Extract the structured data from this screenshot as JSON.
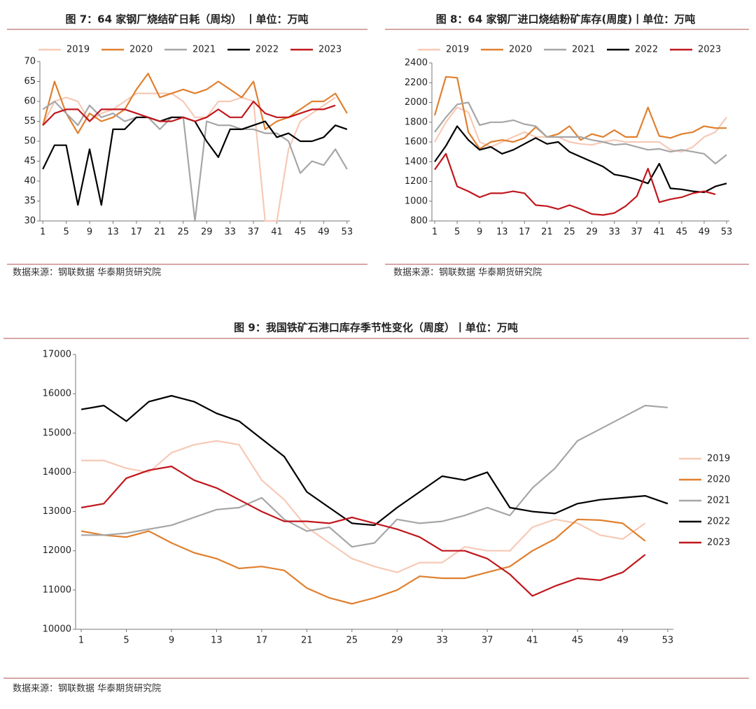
{
  "chart_data": [
    {
      "type": "line",
      "title": "图 7：64 家钢厂烧结矿日耗（周均）  丨单位：万吨",
      "source": "数据来源：钢联数据 华泰期货研究院",
      "legend": "top",
      "x": [
        1,
        3,
        5,
        7,
        9,
        11,
        13,
        15,
        17,
        19,
        21,
        23,
        25,
        27,
        29,
        31,
        33,
        35,
        37,
        39,
        41,
        43,
        45,
        47,
        49,
        51,
        53
      ],
      "xlim": [
        0.5,
        53.5
      ],
      "xticks": [
        1,
        5,
        9,
        13,
        17,
        21,
        25,
        29,
        33,
        37,
        41,
        45,
        49,
        53
      ],
      "ylim": [
        30,
        70
      ],
      "yticks": [
        30,
        35,
        40,
        45,
        50,
        55,
        60,
        65,
        70
      ],
      "series": [
        {
          "name": "2019",
          "color": "#f7c9b6",
          "values": [
            54,
            60,
            61,
            60,
            55,
            57,
            58,
            60,
            62,
            62,
            62,
            62,
            60,
            56,
            56,
            60,
            60,
            61,
            60,
            30,
            30,
            48,
            55,
            57,
            59,
            61,
            null
          ]
        },
        {
          "name": "2020",
          "color": "#e0802f",
          "values": [
            54,
            65,
            57,
            52,
            57,
            55,
            56,
            58,
            63,
            67,
            61,
            62,
            63,
            62,
            63,
            65,
            63,
            61,
            65,
            53,
            55,
            56,
            58,
            60,
            60,
            62,
            57
          ]
        },
        {
          "name": "2021",
          "color": "#a6a6a6",
          "values": [
            58,
            60,
            57,
            54,
            59,
            56,
            57,
            55,
            56,
            56,
            53,
            56,
            56,
            30,
            55,
            54,
            54,
            53,
            53,
            52,
            52,
            50,
            42,
            45,
            44,
            48,
            43
          ]
        },
        {
          "name": "2022",
          "color": "#000000",
          "values": [
            43,
            49,
            49,
            34,
            48,
            34,
            53,
            53,
            56,
            56,
            55,
            56,
            56,
            55,
            50,
            46,
            53,
            53,
            54,
            55,
            51,
            52,
            50,
            50,
            51,
            54,
            53
          ]
        },
        {
          "name": "2023",
          "color": "#c0171d",
          "values": [
            54,
            57,
            58,
            58,
            55,
            58,
            58,
            58,
            57,
            56,
            55,
            55,
            56,
            55,
            56,
            58,
            56,
            56,
            60,
            57,
            56,
            56,
            57,
            58,
            58,
            59,
            null
          ]
        }
      ]
    },
    {
      "type": "line",
      "title": "图 8：64 家钢厂进口烧结粉矿库存(周度)丨单位：万吨",
      "source": "数据来源：钢联数据 华泰期货研究院",
      "legend": "top",
      "x": [
        1,
        3,
        5,
        7,
        9,
        11,
        13,
        15,
        17,
        19,
        21,
        23,
        25,
        27,
        29,
        31,
        33,
        35,
        37,
        39,
        41,
        43,
        45,
        47,
        49,
        51,
        53
      ],
      "xlim": [
        0.5,
        53.5
      ],
      "xticks": [
        1,
        5,
        9,
        13,
        17,
        21,
        25,
        29,
        33,
        37,
        41,
        45,
        49,
        53
      ],
      "ylim": [
        800,
        2400
      ],
      "yticks": [
        800,
        1000,
        1200,
        1400,
        1600,
        1800,
        2000,
        2200,
        2400
      ],
      "series": [
        {
          "name": "2019",
          "color": "#f7c9b6",
          "values": [
            1600,
            1800,
            1950,
            1900,
            1600,
            1550,
            1600,
            1650,
            1700,
            1650,
            1650,
            1650,
            1600,
            1580,
            1570,
            1600,
            1620,
            1600,
            1600,
            1600,
            1600,
            1520,
            1500,
            1550,
            1650,
            1700,
            1850
          ]
        },
        {
          "name": "2020",
          "color": "#e0802f",
          "values": [
            1870,
            2260,
            2250,
            1700,
            1530,
            1600,
            1620,
            1600,
            1640,
            1750,
            1650,
            1680,
            1760,
            1620,
            1680,
            1650,
            1720,
            1650,
            1650,
            1950,
            1660,
            1640,
            1680,
            1700,
            1760,
            1740,
            1740
          ]
        },
        {
          "name": "2021",
          "color": "#a6a6a6",
          "values": [
            1700,
            1850,
            1980,
            2000,
            1770,
            1800,
            1800,
            1820,
            1780,
            1760,
            1650,
            1650,
            1650,
            1650,
            1620,
            1600,
            1570,
            1580,
            1550,
            1520,
            1530,
            1500,
            1520,
            1500,
            1480,
            1380,
            1470
          ]
        },
        {
          "name": "2022",
          "color": "#000000",
          "values": [
            1400,
            1560,
            1760,
            1620,
            1520,
            1550,
            1480,
            1520,
            1580,
            1640,
            1580,
            1600,
            1500,
            1450,
            1400,
            1350,
            1270,
            1250,
            1220,
            1180,
            1380,
            1130,
            1120,
            1100,
            1090,
            1150,
            1180
          ]
        },
        {
          "name": "2023",
          "color": "#c0171d",
          "values": [
            1320,
            1480,
            1150,
            1100,
            1040,
            1080,
            1080,
            1100,
            1080,
            960,
            950,
            920,
            960,
            920,
            870,
            860,
            880,
            950,
            1050,
            1330,
            990,
            1020,
            1040,
            1080,
            1100,
            1070,
            null
          ]
        }
      ]
    },
    {
      "type": "line",
      "title": "图 9：我国铁矿石港口库存季节性变化（周度）丨单位：万吨",
      "source": "数据来源：钢联数据 华泰期货研究院",
      "legend": "right",
      "x": [
        1,
        3,
        5,
        7,
        9,
        11,
        13,
        15,
        17,
        19,
        21,
        23,
        25,
        27,
        29,
        31,
        33,
        35,
        37,
        39,
        41,
        43,
        45,
        47,
        49,
        51,
        53
      ],
      "xlim": [
        0.5,
        53.5
      ],
      "xticks": [
        1,
        5,
        9,
        13,
        17,
        21,
        25,
        29,
        33,
        37,
        41,
        45,
        49,
        53
      ],
      "ylim": [
        10000,
        17000
      ],
      "yticks": [
        10000,
        11000,
        12000,
        13000,
        14000,
        15000,
        16000,
        17000
      ],
      "series": [
        {
          "name": "2019",
          "color": "#f7c9b6",
          "values": [
            14300,
            14300,
            14100,
            14000,
            14500,
            14700,
            14800,
            14700,
            13800,
            13300,
            12600,
            12200,
            11800,
            11600,
            11450,
            11700,
            11700,
            12100,
            12000,
            12000,
            12600,
            12800,
            12700,
            12400,
            12300,
            12700,
            null
          ]
        },
        {
          "name": "2020",
          "color": "#e0802f",
          "values": [
            12500,
            12400,
            12350,
            12500,
            12200,
            11950,
            11800,
            11550,
            11600,
            11500,
            11050,
            10800,
            10650,
            10800,
            11000,
            11350,
            11300,
            11300,
            11450,
            11600,
            12000,
            12300,
            12800,
            12780,
            12700,
            12250,
            null
          ]
        },
        {
          "name": "2021",
          "color": "#a6a6a6",
          "values": [
            12400,
            12400,
            12450,
            12550,
            12650,
            12850,
            13050,
            13100,
            13350,
            12800,
            12500,
            12600,
            12100,
            12200,
            12800,
            12700,
            12750,
            12900,
            13100,
            12900,
            13600,
            14100,
            14800,
            15100,
            15400,
            15700,
            15650
          ]
        },
        {
          "name": "2022",
          "color": "#000000",
          "values": [
            15600,
            15700,
            15300,
            15800,
            15950,
            15800,
            15500,
            15300,
            14850,
            14400,
            13500,
            13100,
            12700,
            12650,
            13100,
            13500,
            13900,
            13800,
            14000,
            13100,
            13000,
            12950,
            13200,
            13300,
            13350,
            13400,
            13200
          ]
        },
        {
          "name": "2023",
          "color": "#c0171d",
          "values": [
            13100,
            13200,
            13850,
            14050,
            14150,
            13800,
            13600,
            13300,
            13000,
            12750,
            12750,
            12700,
            12850,
            12700,
            12550,
            12350,
            12000,
            12000,
            11800,
            11400,
            10850,
            11100,
            11300,
            11250,
            11450,
            11900,
            null
          ]
        }
      ]
    }
  ]
}
